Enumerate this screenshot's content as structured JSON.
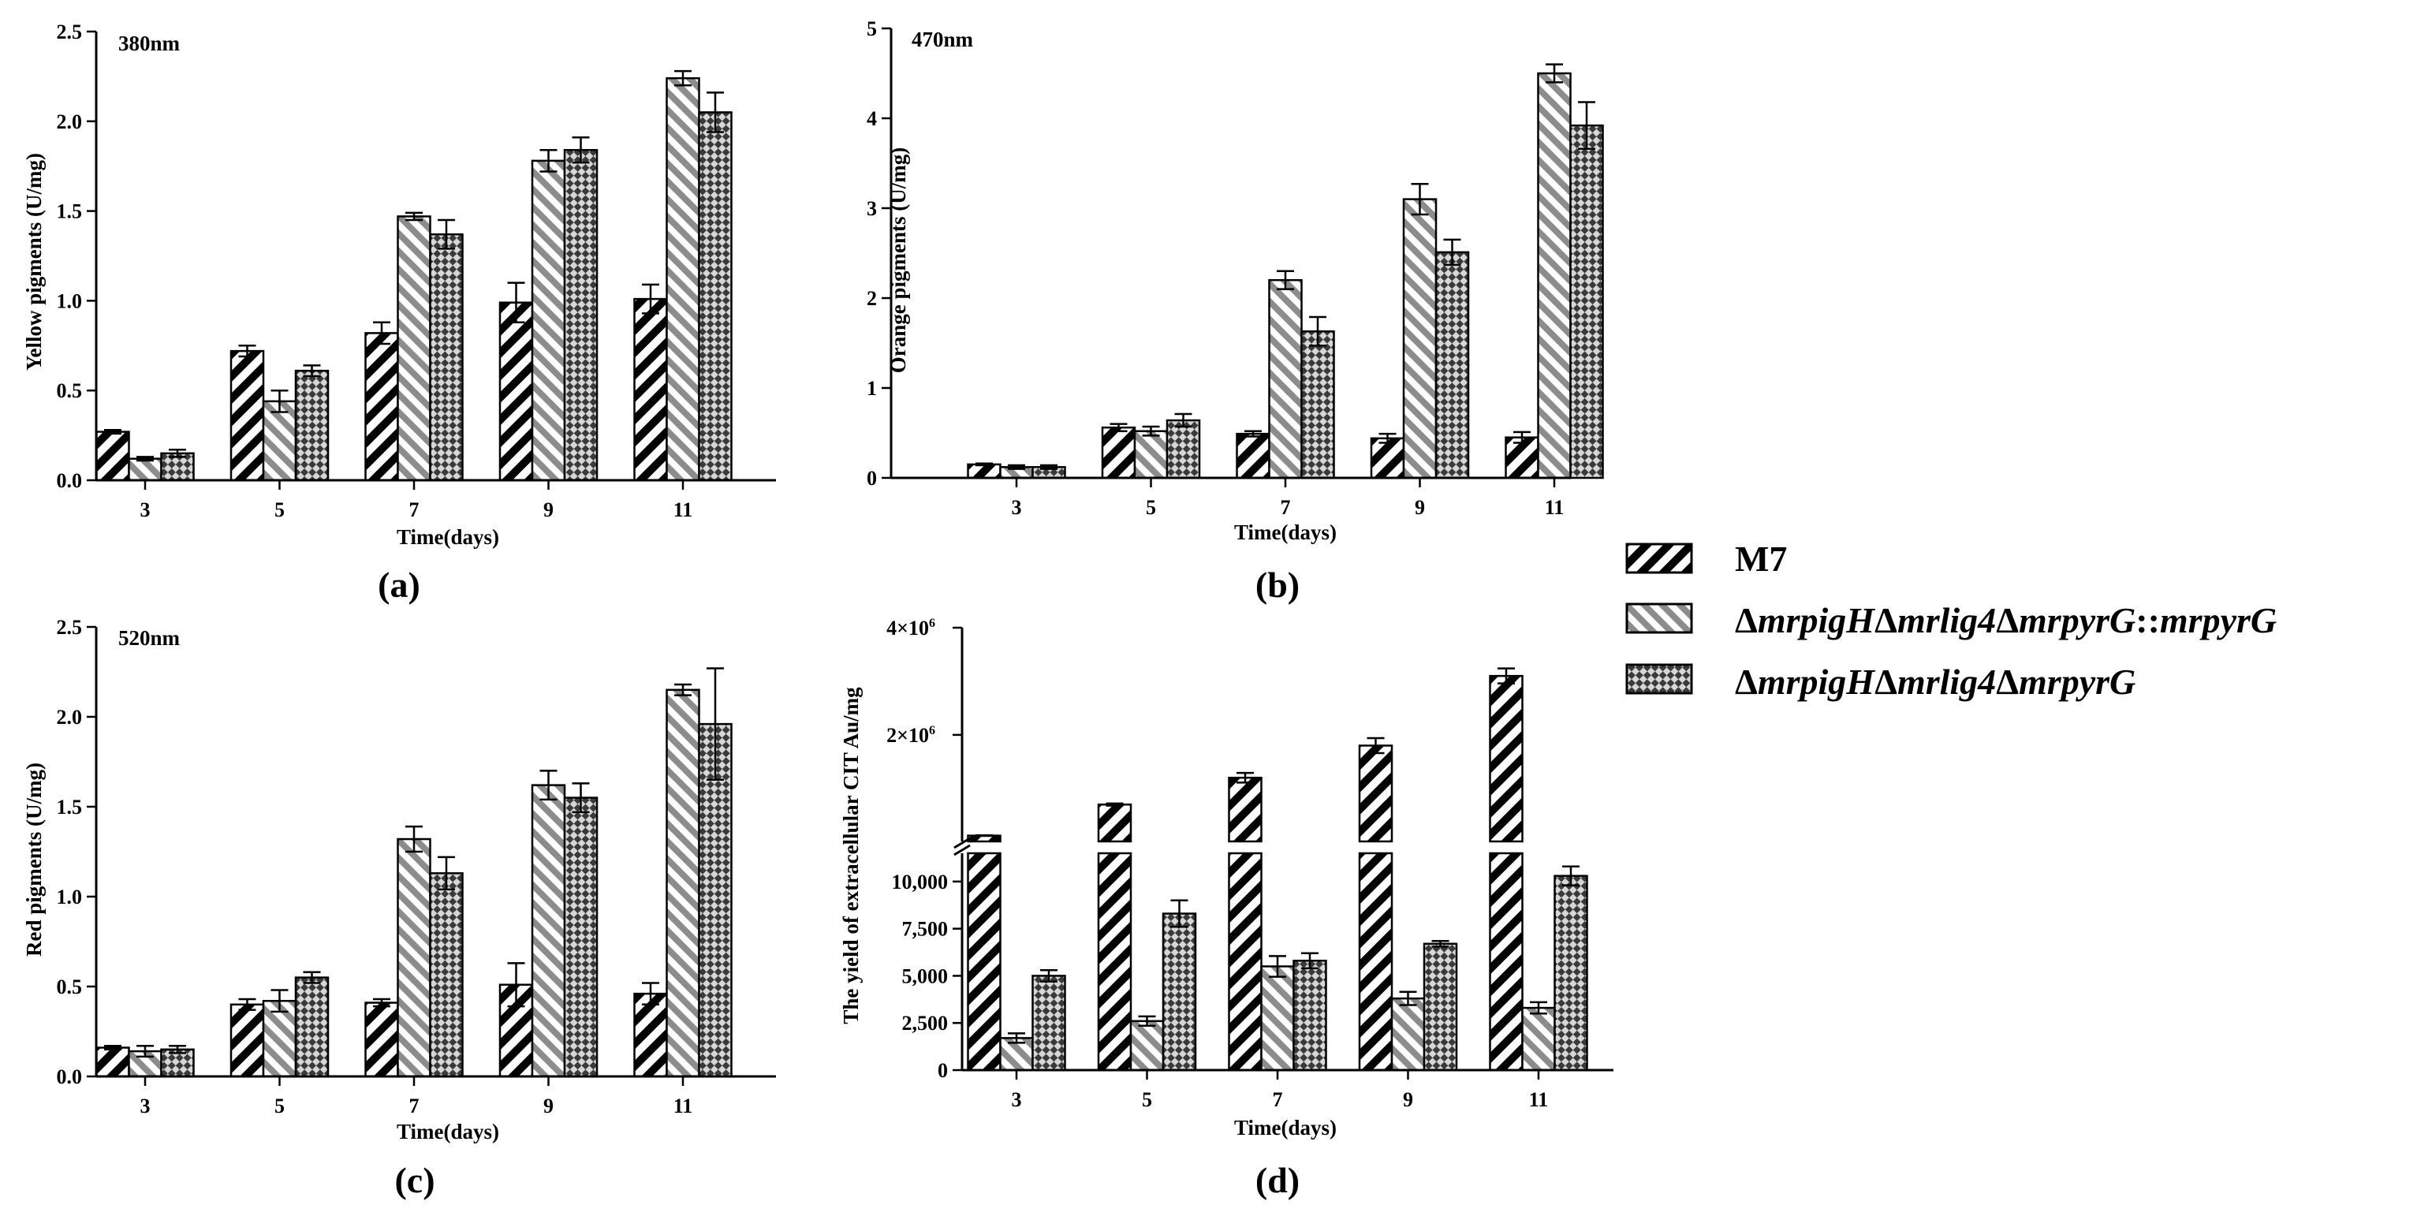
{
  "legend": [
    {
      "series": "M7",
      "parts": [
        {
          "t": "M7",
          "i": false
        }
      ]
    },
    {
      "series": "ΔmrpigHΔmrlig4ΔmrpyrG::mrpyrG",
      "parts": [
        {
          "t": "Δ",
          "i": false
        },
        {
          "t": "mrpigH",
          "i": true
        },
        {
          "t": "Δ",
          "i": false
        },
        {
          "t": "mrlig4",
          "i": true
        },
        {
          "t": "Δ",
          "i": false
        },
        {
          "t": "mrpyrG",
          "i": true
        },
        {
          "t": "::",
          "i": false
        },
        {
          "t": "mrpyrG",
          "i": true
        }
      ]
    },
    {
      "series": "ΔmrpigHΔmrlig4ΔmrpyrG",
      "parts": [
        {
          "t": "Δ",
          "i": false
        },
        {
          "t": "mrpigH",
          "i": true
        },
        {
          "t": "Δ",
          "i": false
        },
        {
          "t": "mrlig4",
          "i": true
        },
        {
          "t": "Δ",
          "i": false
        },
        {
          "t": "mrpyrG",
          "i": true
        }
      ]
    }
  ],
  "colors": {
    "stripe_dark": "#000000",
    "stripe_gray": "#8c8c8c",
    "check_dark": "#3a3a3a",
    "check_light": "#d6d6d6"
  },
  "chart_data": [
    {
      "type": "bar",
      "id": "a",
      "label": "(a)",
      "wavelength": "380nm",
      "xlabel": "Time(days)",
      "ylabel": "Yellow pigments (U/mg)",
      "categories": [
        "3",
        "5",
        "7",
        "9",
        "11"
      ],
      "ylim": [
        0,
        2.5
      ],
      "yticks": [
        {
          "v": 0,
          "t": "0.0"
        },
        {
          "v": 0.5,
          "t": "0.5"
        },
        {
          "v": 1,
          "t": "1.0"
        },
        {
          "v": 1.5,
          "t": "1.5"
        },
        {
          "v": 2,
          "t": "2.0"
        },
        {
          "v": 2.5,
          "t": "2.5"
        }
      ],
      "series": [
        {
          "name": "M7",
          "values": [
            0.27,
            0.72,
            0.82,
            0.99,
            1.01
          ],
          "errors": [
            0.01,
            0.03,
            0.06,
            0.11,
            0.08
          ]
        },
        {
          "name": "ΔmrpigHΔmrlig4ΔmrpyrG::mrpyrG",
          "values": [
            0.12,
            0.44,
            1.47,
            1.78,
            2.24
          ],
          "errors": [
            0.01,
            0.06,
            0.02,
            0.06,
            0.04
          ]
        },
        {
          "name": "ΔmrpigHΔmrlig4ΔmrpyrG",
          "values": [
            0.15,
            0.61,
            1.37,
            1.84,
            2.05
          ],
          "errors": [
            0.02,
            0.03,
            0.08,
            0.07,
            0.11
          ]
        }
      ]
    },
    {
      "type": "bar",
      "id": "b",
      "label": "(b)",
      "wavelength": "470nm",
      "xlabel": "Time(days)",
      "ylabel": "Orange pigments (U/mg)",
      "categories": [
        "3",
        "5",
        "7",
        "9",
        "11"
      ],
      "ylim": [
        0,
        5
      ],
      "yticks": [
        {
          "v": 0,
          "t": "0"
        },
        {
          "v": 1,
          "t": "1"
        },
        {
          "v": 2,
          "t": "2"
        },
        {
          "v": 3,
          "t": "3"
        },
        {
          "v": 4,
          "t": "4"
        },
        {
          "v": 5,
          "t": "5"
        }
      ],
      "series": [
        {
          "name": "M7",
          "values": [
            0.15,
            0.56,
            0.49,
            0.44,
            0.45
          ],
          "errors": [
            0.01,
            0.04,
            0.03,
            0.05,
            0.06
          ]
        },
        {
          "name": "ΔmrpigHΔmrlig4ΔmrpyrG::mrpyrG",
          "values": [
            0.12,
            0.52,
            2.2,
            3.1,
            4.5
          ],
          "errors": [
            0.02,
            0.05,
            0.1,
            0.17,
            0.1
          ]
        },
        {
          "name": "ΔmrpigHΔmrlig4ΔmrpyrG",
          "values": [
            0.12,
            0.64,
            1.63,
            2.51,
            3.92
          ],
          "errors": [
            0.02,
            0.07,
            0.16,
            0.14,
            0.26
          ]
        }
      ]
    },
    {
      "type": "bar",
      "id": "c",
      "label": "(c)",
      "wavelength": "520nm",
      "xlabel": "Time(days)",
      "ylabel": "Red pigments (U/mg)",
      "categories": [
        "3",
        "5",
        "7",
        "9",
        "11"
      ],
      "ylim": [
        0,
        2.5
      ],
      "yticks": [
        {
          "v": 0,
          "t": "0.0"
        },
        {
          "v": 0.5,
          "t": "0.5"
        },
        {
          "v": 1,
          "t": "1.0"
        },
        {
          "v": 1.5,
          "t": "1.5"
        },
        {
          "v": 2,
          "t": "2.0"
        },
        {
          "v": 2.5,
          "t": "2.5"
        }
      ],
      "series": [
        {
          "name": "M7",
          "values": [
            0.16,
            0.4,
            0.41,
            0.51,
            0.46
          ],
          "errors": [
            0.01,
            0.03,
            0.02,
            0.12,
            0.06
          ]
        },
        {
          "name": "ΔmrpigHΔmrlig4ΔmrpyrG::mrpyrG",
          "values": [
            0.14,
            0.42,
            1.32,
            1.62,
            2.15
          ],
          "errors": [
            0.03,
            0.06,
            0.07,
            0.08,
            0.03
          ]
        },
        {
          "name": "ΔmrpigHΔmrlig4ΔmrpyrG",
          "values": [
            0.15,
            0.55,
            1.13,
            1.55,
            1.96
          ],
          "errors": [
            0.02,
            0.03,
            0.09,
            0.08,
            0.31
          ]
        }
      ]
    },
    {
      "type": "bar",
      "id": "d",
      "label": "(d)",
      "xlabel": "Time(days)",
      "ylabel": "The yield of extracellular CIT Au/mg",
      "categories": [
        "3",
        "5",
        "7",
        "9",
        "11"
      ],
      "broken_axis": {
        "lower": [
          0,
          11500
        ],
        "upper": [
          11500,
          4000000
        ]
      },
      "yticks": [
        {
          "v": 0,
          "t": "0"
        },
        {
          "v": 2500,
          "t": "2,500"
        },
        {
          "v": 5000,
          "t": "5,000"
        },
        {
          "v": 7500,
          "t": "7,500"
        },
        {
          "v": 10000,
          "t": "10,000"
        },
        {
          "v": 2000000,
          "m": "2×10",
          "e": "6"
        },
        {
          "v": 4000000,
          "m": "4×10",
          "e": "6"
        }
      ],
      "series": [
        {
          "name": "M7",
          "values": [
            120000,
            700000,
            1200000,
            1800000,
            3100000
          ],
          "errors": [
            5000,
            20000,
            90000,
            140000,
            140000
          ]
        },
        {
          "name": "ΔmrpigHΔmrlig4ΔmrpyrG::mrpyrG",
          "values": [
            1700,
            2600,
            5500,
            3800,
            3300
          ],
          "errors": [
            250,
            250,
            550,
            350,
            300
          ]
        },
        {
          "name": "ΔmrpigHΔmrlig4ΔmrpyrG",
          "values": [
            5000,
            8300,
            5800,
            6700,
            10300
          ],
          "errors": [
            300,
            700,
            400,
            150,
            500
          ]
        }
      ]
    }
  ]
}
